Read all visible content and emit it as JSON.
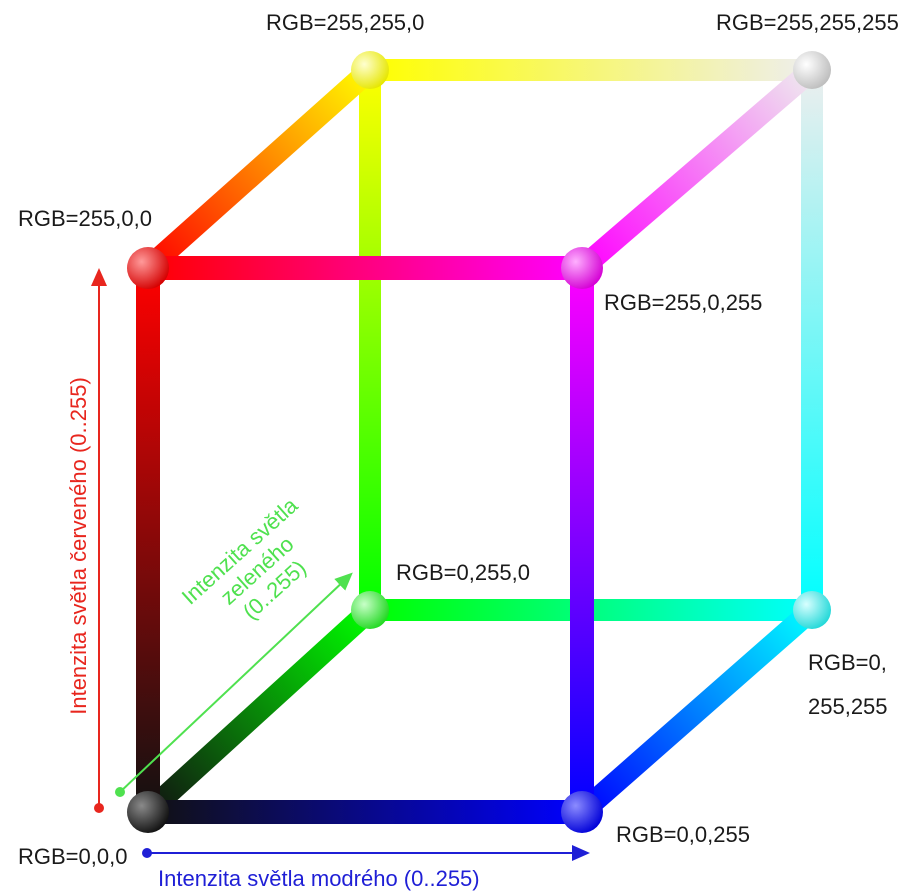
{
  "colors": {
    "black": "#111111",
    "red": "#ff0000",
    "green": "#00ff00",
    "blue": "#0000ff",
    "yellow": "#ffff00",
    "magenta": "#ff00ff",
    "cyan": "#00ffff",
    "white": "#ffffff",
    "red_axis": "#e8261e",
    "green_axis": "#4fe14f",
    "blue_axis": "#1f1fd6"
  },
  "vertices": {
    "black": "RGB=0,0,0",
    "red": "RGB=255,0,0",
    "green": "RGB=0,255,0",
    "blue": "RGB=0,0,255",
    "yellow": "RGB=255,255,0",
    "magenta": "RGB=255,0,255",
    "cyan_line1": "RGB=0,",
    "cyan_line2": "255,255",
    "white": "RGB=255,255,255"
  },
  "axes": {
    "red": "Intenzita světla červeného (0..255)",
    "green_line1": "Intenzita světla",
    "green_line2": "zeleného",
    "green_line3": "(0..255)",
    "blue": "Intenzita světla modrého (0..255)"
  }
}
